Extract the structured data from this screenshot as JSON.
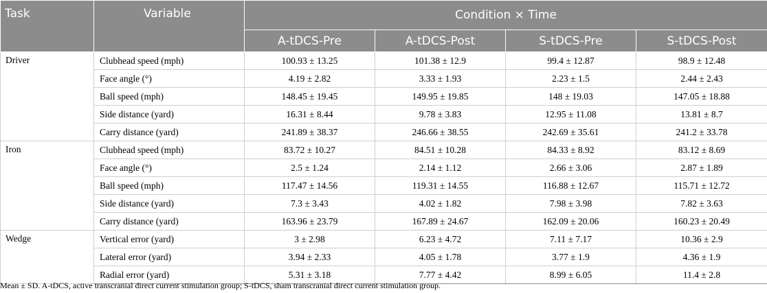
{
  "header": {
    "task": "Task",
    "variable": "Variable",
    "condition_time": "Condition × Time",
    "columns": [
      "A-tDCS-Pre",
      "A-tDCS-Post",
      "S-tDCS-Pre",
      "S-tDCS-Post"
    ]
  },
  "groups": [
    {
      "task": "Driver",
      "rows": [
        {
          "variable": "Clubhead speed (mph)",
          "values": [
            "100.93 ± 13.25",
            "101.38 ± 12.9",
            "99.4 ± 12.87",
            "98.9 ± 12.48"
          ]
        },
        {
          "variable": "Face angle (°)",
          "values": [
            "4.19 ± 2.82",
            "3.33 ± 1.93",
            "2.23 ± 1.5",
            "2.44 ± 2.43"
          ]
        },
        {
          "variable": "Ball speed (mph)",
          "values": [
            "148.45 ± 19.45",
            "149.95 ± 19.85",
            "148 ± 19.03",
            "147.05 ± 18.88"
          ]
        },
        {
          "variable": "Side distance (yard)",
          "values": [
            "16.31 ± 8.44",
            "9.78 ± 3.83",
            "12.95 ± 11.08",
            "13.81 ± 8.7"
          ]
        },
        {
          "variable": "Carry distance (yard)",
          "values": [
            "241.89 ± 38.37",
            "246.66 ± 38.55",
            "242.69 ± 35.61",
            "241.2 ± 33.78"
          ]
        }
      ]
    },
    {
      "task": "Iron",
      "rows": [
        {
          "variable": "Clubhead speed (mph)",
          "values": [
            "83.72 ± 10.27",
            "84.51 ± 10.28",
            "84.33 ± 8.92",
            "83.12 ± 8.69"
          ]
        },
        {
          "variable": "Face angle (°)",
          "values": [
            "2.5 ± 1.24",
            "2.14 ± 1.12",
            "2.66 ± 3.06",
            "2.87 ± 1.89"
          ]
        },
        {
          "variable": "Ball speed (mph)",
          "values": [
            "117.47 ± 14.56",
            "119.31 ± 14.55",
            "116.88 ± 12.67",
            "115.71 ± 12.72"
          ]
        },
        {
          "variable": "Side distance (yard)",
          "values": [
            "7.3 ± 3.43",
            "4.02 ± 1.82",
            "7.98 ± 3.98",
            "7.82 ± 3.63"
          ]
        },
        {
          "variable": "Carry distance (yard)",
          "values": [
            "163.96 ± 23.79",
            "167.89 ± 24.67",
            "162.09 ± 20.06",
            "160.23 ± 20.49"
          ]
        }
      ]
    },
    {
      "task": "Wedge",
      "rows": [
        {
          "variable": "Vertical error (yard)",
          "values": [
            "3 ± 2.98",
            "6.23 ± 4.72",
            "7.11 ± 7.17",
            "10.36 ± 2.9"
          ]
        },
        {
          "variable": "Lateral error (yard)",
          "values": [
            "3.94 ± 2.33",
            "4.05 ± 1.78",
            "3.77 ± 1.9",
            "4.36 ± 1.9"
          ]
        },
        {
          "variable": "Radial error (yard)",
          "values": [
            "5.31 ± 3.18",
            "7.77 ± 4.42",
            "8.99 ± 6.05",
            "11.4 ± 2.8"
          ]
        }
      ]
    }
  ],
  "footnote": "Mean ± SD. A-tDCS, active transcranial direct current stimulation group; S-tDCS, sham transcranial direct current stimulation group."
}
